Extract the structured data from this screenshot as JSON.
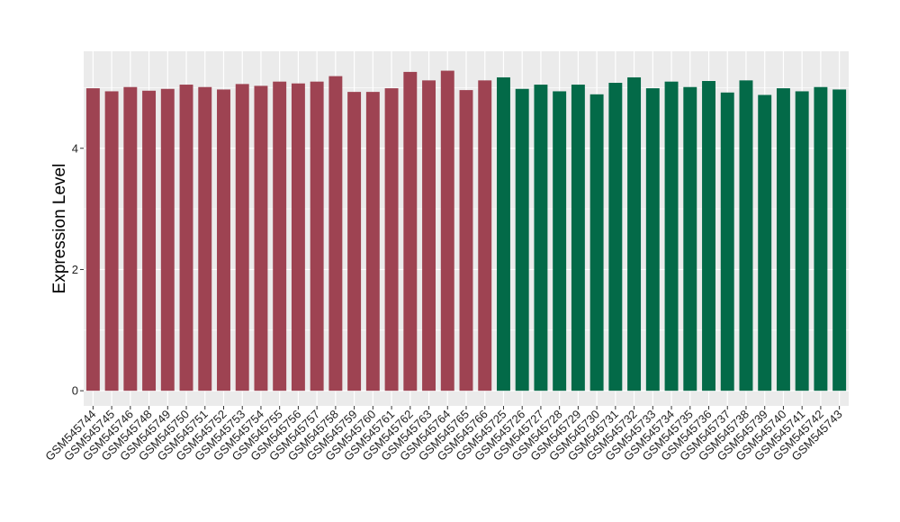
{
  "chart_data": {
    "type": "bar",
    "title": "",
    "xlabel": "",
    "ylabel": "Expression Level",
    "ylim": [
      -0.25,
      5.6
    ],
    "yticks": [
      0,
      2,
      4
    ],
    "grid": true,
    "legend": "none",
    "categories": [
      "GSM545744",
      "GSM545745",
      "GSM545746",
      "GSM545748",
      "GSM545749",
      "GSM545750",
      "GSM545751",
      "GSM545752",
      "GSM545753",
      "GSM545754",
      "GSM545755",
      "GSM545756",
      "GSM545757",
      "GSM545758",
      "GSM545759",
      "GSM545760",
      "GSM545761",
      "GSM545762",
      "GSM545763",
      "GSM545764",
      "GSM545765",
      "GSM545766",
      "GSM545725",
      "GSM545726",
      "GSM545727",
      "GSM545728",
      "GSM545729",
      "GSM545730",
      "GSM545731",
      "GSM545732",
      "GSM545733",
      "GSM545734",
      "GSM545735",
      "GSM545736",
      "GSM545737",
      "GSM545738",
      "GSM545739",
      "GSM545740",
      "GSM545741",
      "GSM545742",
      "GSM545743"
    ],
    "values": [
      4.99,
      4.94,
      5.01,
      4.95,
      4.98,
      5.05,
      5.01,
      4.97,
      5.06,
      5.03,
      5.1,
      5.07,
      5.1,
      5.19,
      4.93,
      4.93,
      4.99,
      5.26,
      5.12,
      5.28,
      4.96,
      5.12,
      5.17,
      4.98,
      5.05,
      4.94,
      5.05,
      4.89,
      5.08,
      5.17,
      4.99,
      5.1,
      5.01,
      5.11,
      4.92,
      5.12,
      4.88,
      4.99,
      4.94,
      5.01,
      4.97
    ],
    "group_sizes": [
      22,
      19
    ],
    "colors": {
      "group_a": "#9e4352",
      "group_b": "#036a48",
      "panel": "#ebebeb",
      "grid": "#ffffff"
    }
  }
}
